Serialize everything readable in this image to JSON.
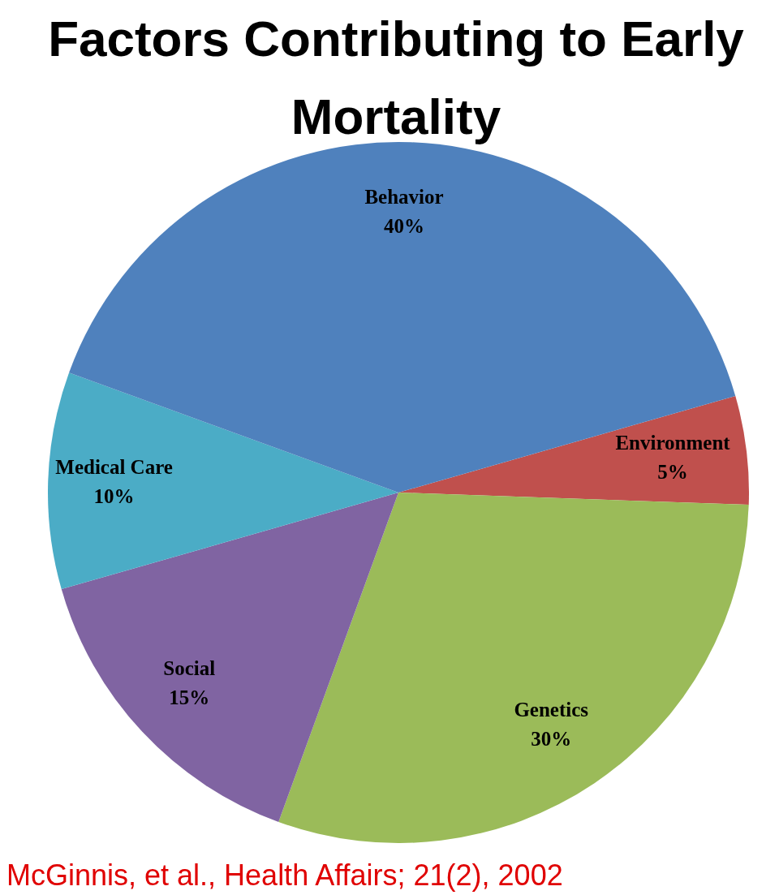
{
  "chart_data": {
    "type": "pie",
    "title": "Factors Contributing to Early Mortality",
    "categories": [
      "Environment",
      "Genetics",
      "Social",
      "Medical Care",
      "Behavior"
    ],
    "values": [
      5,
      30,
      15,
      10,
      40
    ],
    "colors": [
      "#c0504d",
      "#9bbb59",
      "#8064a2",
      "#4bacc6",
      "#4f81bd"
    ],
    "value_labels": [
      "5%",
      "30%",
      "15%",
      "10%",
      "40%"
    ],
    "legend": false,
    "annotations": [
      "McGinnis, et al., Health Affairs; 21(2), 2002"
    ]
  }
}
